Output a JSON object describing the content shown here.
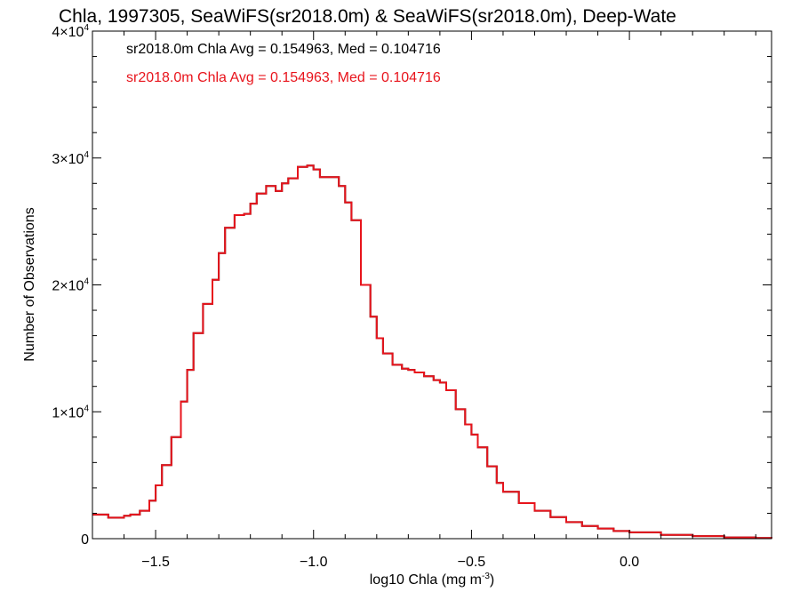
{
  "colors": {
    "axes": "#000000",
    "series_black": "#000000",
    "series_red": "#e8141c",
    "background": "#ffffff"
  },
  "chart_data": {
    "type": "line",
    "step": true,
    "title": "Chla, 1997305, SeaWiFS(sr2018.0m) & SeaWiFS(sr2018.0m), Deep-Wate",
    "xlabel": "log10 Chla (mg m",
    "xlabel_sup": "-3",
    "xlabel_end": ")",
    "ylabel": "Number of Observations",
    "xlim": [
      -1.7,
      0.45
    ],
    "ylim": [
      0,
      40000
    ],
    "x_ticks": [
      {
        "value": -1.5,
        "label": "−1.5"
      },
      {
        "value": -1.0,
        "label": "−1.0"
      },
      {
        "value": -0.5,
        "label": "−0.5"
      },
      {
        "value": 0.0,
        "label": "0.0"
      }
    ],
    "y_ticks": [
      {
        "value": 0,
        "base": "0",
        "exp": ""
      },
      {
        "value": 10000,
        "base": "1×10",
        "exp": "4"
      },
      {
        "value": 20000,
        "base": "2×10",
        "exp": "4"
      },
      {
        "value": 30000,
        "base": "3×10",
        "exp": "4"
      },
      {
        "value": 40000,
        "base": "4×10",
        "exp": "4"
      }
    ],
    "legend": {
      "placement": "top-left"
    },
    "annotations": [
      {
        "text": "sr2018.0m Chla Avg = 0.154963, Med = 0.104716",
        "color": "#000000"
      },
      {
        "text": "sr2018.0m Chla Avg = 0.154963, Med = 0.104716",
        "color": "#e8141c"
      }
    ],
    "series": [
      {
        "color": "#000000",
        "x": [
          -1.7,
          -1.65,
          -1.6,
          -1.58,
          -1.55,
          -1.52,
          -1.5,
          -1.48,
          -1.45,
          -1.42,
          -1.4,
          -1.38,
          -1.35,
          -1.32,
          -1.3,
          -1.28,
          -1.25,
          -1.22,
          -1.2,
          -1.18,
          -1.15,
          -1.12,
          -1.1,
          -1.08,
          -1.05,
          -1.02,
          -1.0,
          -0.98,
          -0.95,
          -0.92,
          -0.9,
          -0.88,
          -0.85,
          -0.82,
          -0.8,
          -0.78,
          -0.75,
          -0.72,
          -0.7,
          -0.68,
          -0.65,
          -0.62,
          -0.6,
          -0.58,
          -0.55,
          -0.52,
          -0.5,
          -0.48,
          -0.45,
          -0.42,
          -0.4,
          -0.35,
          -0.3,
          -0.25,
          -0.2,
          -0.15,
          -0.1,
          -0.05,
          0.0,
          0.1,
          0.2,
          0.3,
          0.4,
          0.45
        ],
        "y": [
          1900,
          1650,
          1800,
          1900,
          2200,
          3000,
          4200,
          5800,
          8000,
          10800,
          13300,
          16200,
          18500,
          20400,
          22500,
          24500,
          25500,
          25600,
          26400,
          27200,
          27800,
          27400,
          28000,
          28400,
          29300,
          29400,
          29100,
          28500,
          28500,
          27800,
          26500,
          25100,
          20000,
          17500,
          15800,
          14600,
          13700,
          13400,
          13300,
          13100,
          12800,
          12500,
          12300,
          11700,
          10200,
          9000,
          8200,
          7200,
          5700,
          4400,
          3700,
          2800,
          2200,
          1700,
          1300,
          1000,
          800,
          600,
          500,
          300,
          200,
          100,
          50,
          30
        ]
      },
      {
        "color": "#e8141c",
        "x": [
          -1.7,
          -1.65,
          -1.6,
          -1.58,
          -1.55,
          -1.52,
          -1.5,
          -1.48,
          -1.45,
          -1.42,
          -1.4,
          -1.38,
          -1.35,
          -1.32,
          -1.3,
          -1.28,
          -1.25,
          -1.22,
          -1.2,
          -1.18,
          -1.15,
          -1.12,
          -1.1,
          -1.08,
          -1.05,
          -1.02,
          -1.0,
          -0.98,
          -0.95,
          -0.92,
          -0.9,
          -0.88,
          -0.85,
          -0.82,
          -0.8,
          -0.78,
          -0.75,
          -0.72,
          -0.7,
          -0.68,
          -0.65,
          -0.62,
          -0.6,
          -0.58,
          -0.55,
          -0.52,
          -0.5,
          -0.48,
          -0.45,
          -0.42,
          -0.4,
          -0.35,
          -0.3,
          -0.25,
          -0.2,
          -0.15,
          -0.1,
          -0.05,
          0.0,
          0.1,
          0.2,
          0.3,
          0.4,
          0.45
        ],
        "y": [
          1900,
          1650,
          1800,
          1900,
          2200,
          3000,
          4200,
          5800,
          8000,
          10800,
          13300,
          16200,
          18500,
          20400,
          22500,
          24500,
          25500,
          25600,
          26400,
          27200,
          27800,
          27400,
          28000,
          28400,
          29300,
          29400,
          29100,
          28500,
          28500,
          27800,
          26500,
          25100,
          20000,
          17500,
          15800,
          14600,
          13700,
          13400,
          13300,
          13100,
          12800,
          12500,
          12300,
          11700,
          10200,
          9000,
          8200,
          7200,
          5700,
          4400,
          3700,
          2800,
          2200,
          1700,
          1300,
          1000,
          800,
          600,
          500,
          300,
          200,
          100,
          50,
          30
        ]
      }
    ]
  }
}
